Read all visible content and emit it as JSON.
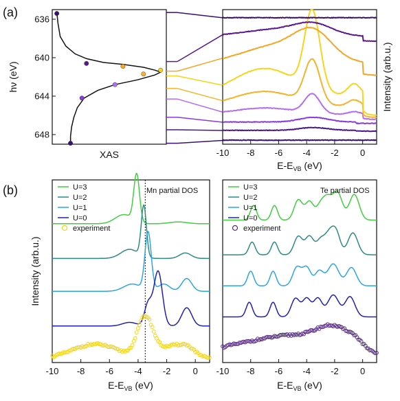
{
  "labels": {
    "panel_a": "(a)",
    "panel_b": "(b)"
  },
  "chart_data": [
    {
      "id": "xas",
      "type": "line",
      "xlabel": "XAS",
      "ylabel": "hν (eV)",
      "ylim": [
        635,
        649
      ],
      "yticks": [
        "636",
        "640",
        "644",
        "648"
      ],
      "y_inverted": true,
      "x": [
        0.04,
        0.05,
        0.07,
        0.12,
        0.2,
        0.3,
        0.45,
        0.62,
        0.8,
        0.9,
        0.95,
        0.9,
        0.75,
        0.55,
        0.4,
        0.28,
        0.22,
        0.19,
        0.17,
        0.16,
        0.16
      ],
      "y": [
        635.2,
        636.4,
        637.8,
        638.8,
        639.6,
        640.1,
        640.5,
        640.7,
        641.0,
        641.3,
        641.5,
        641.8,
        642.3,
        642.8,
        643.4,
        644.2,
        645.2,
        646.2,
        647.2,
        648.2,
        649.0
      ],
      "markers": [
        {
          "x": 0.04,
          "y": 635.4,
          "color": "#3b0f70"
        },
        {
          "x": 0.3,
          "y": 640.6,
          "color": "#5b1690"
        },
        {
          "x": 0.62,
          "y": 640.9,
          "color": "#f5a623"
        },
        {
          "x": 0.95,
          "y": 641.3,
          "color": "#f8d41a"
        },
        {
          "x": 0.8,
          "y": 641.7,
          "color": "#f8b22a"
        },
        {
          "x": 0.55,
          "y": 642.8,
          "color": "#b46cf2"
        },
        {
          "x": 0.26,
          "y": 644.2,
          "color": "#8a38e0"
        },
        {
          "x": 0.16,
          "y": 648.9,
          "color": "#3b0f70"
        }
      ]
    },
    {
      "id": "resonant",
      "type": "line",
      "xlabel": "E-E",
      "xlabel_sub": "VB",
      "xlabel_unit": " (eV)",
      "ylabel": "Intensity (arb.u.)",
      "xlim": [
        -10,
        1
      ],
      "xticks": [
        "-10",
        "-8",
        "-6",
        "-4",
        "-2",
        "0"
      ],
      "series": [
        {
          "color": "#3b0f70",
          "offset": 0.03,
          "kind": "flat",
          "amp": 0.02,
          "hv": 648.9
        },
        {
          "color": "#4b148c",
          "offset": 0.1,
          "kind": "valence",
          "amp": 0.06,
          "hv": 647.5
        },
        {
          "color": "#8a38e0",
          "offset": 0.16,
          "kind": "valence",
          "amp": 0.1,
          "hv": 646.2
        },
        {
          "color": "#b46cf2",
          "offset": 0.22,
          "kind": "res",
          "amp": 0.14,
          "hv": 644.3
        },
        {
          "color": "#f8b22a",
          "offset": 0.28,
          "kind": "res",
          "amp": 0.32,
          "hv": 643.2
        },
        {
          "color": "#f8d41a",
          "offset": 0.36,
          "kind": "res",
          "amp": 0.58,
          "hv": 641.9
        },
        {
          "color": "#f5a623",
          "offset": 0.6,
          "kind": "broad",
          "amp": 0.3,
          "hv": 641.4
        },
        {
          "color": "#5b1690",
          "offset": 0.8,
          "kind": "broad",
          "amp": 0.12,
          "hv": 640.4
        },
        {
          "color": "#3b0f70",
          "offset": 0.94,
          "kind": "flat",
          "amp": 0.02,
          "hv": 635.3
        }
      ]
    },
    {
      "id": "mn_dos",
      "type": "line",
      "annotation": "Mn partial DOS",
      "xlabel": "E-E",
      "xlabel_sub": "VB",
      "xlabel_unit": " (eV)",
      "ylabel": "Intensity (arb.u.)",
      "xlim": [
        -10,
        1
      ],
      "xticks": [
        "-10",
        "-8",
        "-6",
        "-4",
        "-2",
        "0"
      ],
      "vline": -3.5,
      "series": [
        {
          "name": "U=3",
          "color": "#3fcf3f",
          "offset": 0.76,
          "peaks": [
            [
              -4.1,
              0.26,
              0.2
            ],
            [
              -5.0,
              0.05,
              0.6
            ],
            [
              -1.2,
              0.01,
              0.6
            ]
          ]
        },
        {
          "name": "U=2",
          "color": "#2b8a85",
          "offset": 0.57,
          "peaks": [
            [
              -3.6,
              0.28,
              0.18
            ],
            [
              -4.6,
              0.05,
              0.6
            ],
            [
              -0.7,
              0.03,
              0.4
            ]
          ]
        },
        {
          "name": "U=1",
          "color": "#2aa6e8",
          "offset": 0.39,
          "peaks": [
            [
              -3.3,
              0.32,
              0.22
            ],
            [
              -4.4,
              0.04,
              0.6
            ],
            [
              -0.6,
              0.07,
              0.35
            ],
            [
              -2.2,
              0.04,
              0.4
            ]
          ]
        },
        {
          "name": "U=0",
          "color": "#1f1fb8",
          "offset": 0.2,
          "peaks": [
            [
              -2.6,
              0.3,
              0.3
            ],
            [
              -3.3,
              0.12,
              0.25
            ],
            [
              -0.6,
              0.1,
              0.35
            ],
            [
              -4.6,
              0.02,
              0.5
            ]
          ]
        },
        {
          "name": "experiment",
          "color": "#f5d51c",
          "offset": 0.02,
          "peaks": [
            [
              -3.5,
              0.22,
              0.55
            ],
            [
              -7.0,
              0.08,
              1.6
            ],
            [
              -1.5,
              0.07,
              1.0
            ],
            [
              -0.5,
              0.03,
              0.5
            ]
          ],
          "marker": "open-circle"
        }
      ]
    },
    {
      "id": "te_dos",
      "type": "line",
      "annotation": "Te partial DOS",
      "xlabel": "E-E",
      "xlabel_sub": "VB",
      "xlabel_unit": " (eV)",
      "xlim": [
        -10,
        1
      ],
      "xticks": [
        "-10",
        "-8",
        "-6",
        "-4",
        "-2",
        "0"
      ],
      "series": [
        {
          "name": "U=3",
          "color": "#3fcf3f",
          "offset": 0.78,
          "peaks": [
            [
              -7.8,
              0.08,
              0.22
            ],
            [
              -6.3,
              0.08,
              0.22
            ],
            [
              -4.6,
              0.11,
              0.3
            ],
            [
              -3.8,
              0.1,
              0.3
            ],
            [
              -3.0,
              0.08,
              0.3
            ],
            [
              -2.5,
              0.1,
              0.3
            ],
            [
              -1.8,
              0.15,
              0.35
            ],
            [
              -0.6,
              0.14,
              0.35
            ]
          ]
        },
        {
          "name": "U=2",
          "color": "#2b8a85",
          "offset": 0.59,
          "peaks": [
            [
              -7.9,
              0.07,
              0.22
            ],
            [
              -6.3,
              0.07,
              0.22
            ],
            [
              -4.6,
              0.1,
              0.3
            ],
            [
              -3.8,
              0.1,
              0.3
            ],
            [
              -3.0,
              0.08,
              0.3
            ],
            [
              -2.4,
              0.1,
              0.3
            ],
            [
              -1.9,
              0.12,
              0.3
            ],
            [
              -0.7,
              0.12,
              0.35
            ]
          ]
        },
        {
          "name": "U=1",
          "color": "#2aa6e8",
          "offset": 0.42,
          "peaks": [
            [
              -8.0,
              0.08,
              0.22
            ],
            [
              -6.4,
              0.08,
              0.22
            ],
            [
              -4.7,
              0.1,
              0.3
            ],
            [
              -4.0,
              0.1,
              0.3
            ],
            [
              -3.1,
              0.08,
              0.3
            ],
            [
              -2.1,
              0.12,
              0.4
            ],
            [
              -0.8,
              0.1,
              0.35
            ]
          ]
        },
        {
          "name": "U=0",
          "color": "#1f1fb8",
          "offset": 0.25,
          "peaks": [
            [
              -8.1,
              0.08,
              0.22
            ],
            [
              -6.4,
              0.08,
              0.22
            ],
            [
              -4.8,
              0.1,
              0.3
            ],
            [
              -4.0,
              0.1,
              0.3
            ],
            [
              -3.2,
              0.1,
              0.3
            ],
            [
              -2.1,
              0.12,
              0.4
            ],
            [
              -0.9,
              0.11,
              0.35
            ]
          ]
        },
        {
          "name": "experiment",
          "color": "#5a2d86",
          "offset": 0.04,
          "peaks": [
            [
              -8.0,
              0.06,
              2.5
            ],
            [
              -4.5,
              0.08,
              2.0
            ],
            [
              -2.0,
              0.12,
              1.2
            ],
            [
              -0.5,
              0.04,
              0.6
            ]
          ],
          "marker": "open-circle"
        }
      ]
    }
  ]
}
